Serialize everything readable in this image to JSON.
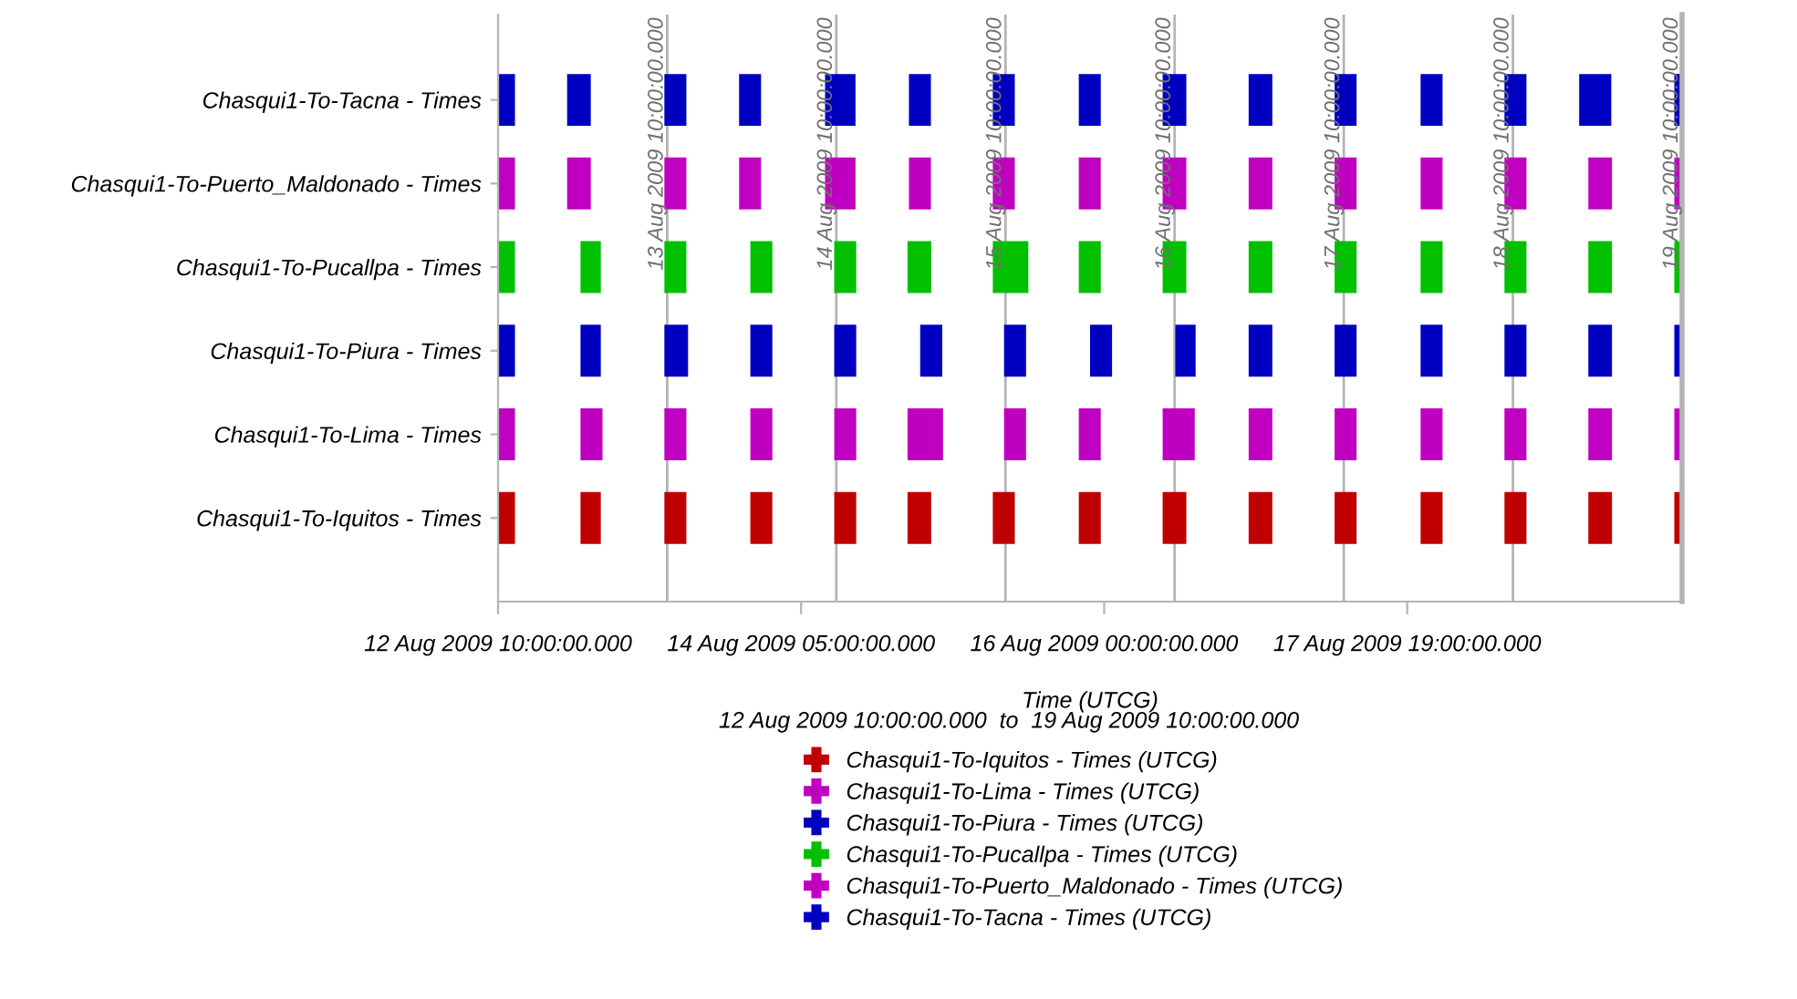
{
  "chart_data": {
    "type": "bar",
    "orientation": "horizontal",
    "xlabel": "Time (UTCG)",
    "annotations": [
      "12 Aug 2009 10:00:00.000  to  19 Aug 2009 10:00:00.000"
    ],
    "categories": [
      "Chasqui1-To-Tacna - Times",
      "Chasqui1-To-Puerto_Maldonado - Times",
      "Chasqui1-To-Pucallpa - Times",
      "Chasqui1-To-Piura - Times",
      "Chasqui1-To-Lima - Times",
      "Chasqui1-To-Iquitos - Times"
    ],
    "xlim": [
      "2009-08-12T10:00",
      "2009-08-19T10:00"
    ],
    "xticks": [
      {
        "value": "2009-08-12T10:00",
        "label": "12 Aug 2009 10:00:00.000"
      },
      {
        "value": "2009-08-14T05:00",
        "label": "14 Aug 2009 05:00:00.000"
      },
      {
        "value": "2009-08-16T00:00",
        "label": "16 Aug 2009 00:00:00.000"
      },
      {
        "value": "2009-08-17T19:00",
        "label": "17 Aug 2009 19:00:00.000"
      }
    ],
    "ref_lines": [
      {
        "axis": "x",
        "value": "2009-08-13T10:00",
        "label": "13 Aug 2009 10:00:00.000",
        "color": "#b4b4b4"
      },
      {
        "axis": "x",
        "value": "2009-08-14T10:00",
        "label": "14 Aug 2009 10:00:00.000",
        "color": "#b4b4b4"
      },
      {
        "axis": "x",
        "value": "2009-08-15T10:00",
        "label": "15 Aug 2009 10:00:00.000",
        "color": "#b4b4b4"
      },
      {
        "axis": "x",
        "value": "2009-08-16T10:00",
        "label": "16 Aug 2009 10:00:00.000",
        "color": "#b4b4b4"
      },
      {
        "axis": "x",
        "value": "2009-08-17T10:00",
        "label": "17 Aug 2009 10:00:00.000",
        "color": "#b4b4b4"
      },
      {
        "axis": "x",
        "value": "2009-08-18T10:00",
        "label": "18 Aug 2009 10:00:00.000",
        "color": "#b4b4b4"
      },
      {
        "axis": "x",
        "value": "2009-08-19T10:00",
        "label": "19 Aug 2009 10:00:00.000",
        "color": "#b4b4b4"
      }
    ],
    "legend": "bottom",
    "marker": "cross",
    "grid": false,
    "series": [
      {
        "name": "Chasqui1-To-Iquitos - Times (UTCG)",
        "color": "#c00000",
        "x": [
          "Chasqui1-To-Iquitos - Times",
          "Chasqui1-To-Iquitos - Times",
          "Chasqui1-To-Iquitos - Times",
          "Chasqui1-To-Iquitos - Times",
          "Chasqui1-To-Iquitos - Times",
          "Chasqui1-To-Iquitos - Times",
          "Chasqui1-To-Iquitos - Times",
          "Chasqui1-To-Iquitos - Times",
          "Chasqui1-To-Iquitos - Times",
          "Chasqui1-To-Iquitos - Times",
          "Chasqui1-To-Iquitos - Times",
          "Chasqui1-To-Iquitos - Times",
          "Chasqui1-To-Iquitos - Times",
          "Chasqui1-To-Iquitos - Times",
          "Chasqui1-To-Iquitos - Times"
        ],
        "base": [
          14468.4167,
          14468.9042,
          14469.4,
          14469.9083,
          14470.4042,
          14470.8375,
          14471.3417,
          14471.85,
          14472.3458,
          14472.8542,
          14473.3625,
          14473.8708,
          14474.3667,
          14474.8625,
          14475.3708
        ],
        "values": [
          0.1,
          0.12,
          0.13,
          0.13,
          0.13,
          0.14,
          0.13,
          0.13,
          0.14,
          0.14,
          0.13,
          0.13,
          0.13,
          0.14,
          0.04
        ]
      },
      {
        "name": "Chasqui1-To-Lima - Times (UTCG)",
        "color": "#c000c0",
        "x": [
          "Chasqui1-To-Lima - Times",
          "Chasqui1-To-Lima - Times",
          "Chasqui1-To-Lima - Times",
          "Chasqui1-To-Lima - Times",
          "Chasqui1-To-Lima - Times",
          "Chasqui1-To-Lima - Times",
          "Chasqui1-To-Lima - Times",
          "Chasqui1-To-Lima - Times",
          "Chasqui1-To-Lima - Times",
          "Chasqui1-To-Lima - Times",
          "Chasqui1-To-Lima - Times",
          "Chasqui1-To-Lima - Times",
          "Chasqui1-To-Lima - Times",
          "Chasqui1-To-Lima - Times",
          "Chasqui1-To-Lima - Times"
        ],
        "base": [
          14468.4167,
          14468.9042,
          14469.4,
          14469.9083,
          14470.4042,
          14470.8375,
          14471.4083,
          14471.85,
          14472.3458,
          14472.8542,
          14473.3625,
          14473.8708,
          14474.3667,
          14474.8625,
          14475.3708
        ],
        "values": [
          0.1,
          0.13,
          0.13,
          0.13,
          0.13,
          0.21,
          0.13,
          0.13,
          0.19,
          0.14,
          0.13,
          0.13,
          0.13,
          0.14,
          0.04
        ]
      },
      {
        "name": "Chasqui1-To-Piura - Times (UTCG)",
        "color": "#0000c0",
        "x": [
          "Chasqui1-To-Piura - Times",
          "Chasqui1-To-Piura - Times",
          "Chasqui1-To-Piura - Times",
          "Chasqui1-To-Piura - Times",
          "Chasqui1-To-Piura - Times",
          "Chasqui1-To-Piura - Times",
          "Chasqui1-To-Piura - Times",
          "Chasqui1-To-Piura - Times",
          "Chasqui1-To-Piura - Times",
          "Chasqui1-To-Piura - Times",
          "Chasqui1-To-Piura - Times",
          "Chasqui1-To-Piura - Times",
          "Chasqui1-To-Piura - Times",
          "Chasqui1-To-Piura - Times",
          "Chasqui1-To-Piura - Times"
        ],
        "base": [
          14468.4167,
          14468.9042,
          14469.4,
          14469.9083,
          14470.4042,
          14470.9125,
          14471.4083,
          14471.9167,
          14472.4208,
          14472.8542,
          14473.3625,
          14473.8708,
          14474.3667,
          14474.8625,
          14475.3708
        ],
        "values": [
          0.1,
          0.12,
          0.14,
          0.13,
          0.13,
          0.13,
          0.13,
          0.13,
          0.12,
          0.14,
          0.13,
          0.13,
          0.13,
          0.14,
          0.04
        ]
      },
      {
        "name": "Chasqui1-To-Pucallpa - Times (UTCG)",
        "color": "#00c000",
        "x": [
          "Chasqui1-To-Pucallpa - Times",
          "Chasqui1-To-Pucallpa - Times",
          "Chasqui1-To-Pucallpa - Times",
          "Chasqui1-To-Pucallpa - Times",
          "Chasqui1-To-Pucallpa - Times",
          "Chasqui1-To-Pucallpa - Times",
          "Chasqui1-To-Pucallpa - Times",
          "Chasqui1-To-Pucallpa - Times",
          "Chasqui1-To-Pucallpa - Times",
          "Chasqui1-To-Pucallpa - Times",
          "Chasqui1-To-Pucallpa - Times",
          "Chasqui1-To-Pucallpa - Times",
          "Chasqui1-To-Pucallpa - Times",
          "Chasqui1-To-Pucallpa - Times",
          "Chasqui1-To-Pucallpa - Times"
        ],
        "base": [
          14468.4167,
          14468.9042,
          14469.4,
          14469.9083,
          14470.4042,
          14470.8375,
          14471.3417,
          14471.85,
          14472.3458,
          14472.8542,
          14473.3625,
          14473.8708,
          14474.3667,
          14474.8625,
          14475.3708
        ],
        "values": [
          0.1,
          0.12,
          0.13,
          0.13,
          0.13,
          0.14,
          0.21,
          0.13,
          0.14,
          0.14,
          0.13,
          0.13,
          0.13,
          0.14,
          0.04
        ]
      },
      {
        "name": "Chasqui1-To-Puerto_Maldonado - Times (UTCG)",
        "color": "#c000c0",
        "x": [
          "Chasqui1-To-Puerto_Maldonado - Times",
          "Chasqui1-To-Puerto_Maldonado - Times",
          "Chasqui1-To-Puerto_Maldonado - Times",
          "Chasqui1-To-Puerto_Maldonado - Times",
          "Chasqui1-To-Puerto_Maldonado - Times",
          "Chasqui1-To-Puerto_Maldonado - Times",
          "Chasqui1-To-Puerto_Maldonado - Times",
          "Chasqui1-To-Puerto_Maldonado - Times",
          "Chasqui1-To-Puerto_Maldonado - Times",
          "Chasqui1-To-Puerto_Maldonado - Times",
          "Chasqui1-To-Puerto_Maldonado - Times",
          "Chasqui1-To-Puerto_Maldonado - Times",
          "Chasqui1-To-Puerto_Maldonado - Times",
          "Chasqui1-To-Puerto_Maldonado - Times",
          "Chasqui1-To-Puerto_Maldonado - Times"
        ],
        "base": [
          14468.4167,
          14468.825,
          14469.4,
          14469.8417,
          14470.35,
          14470.8458,
          14471.3417,
          14471.85,
          14472.3458,
          14472.8542,
          14473.3625,
          14473.8708,
          14474.3667,
          14474.8625,
          14475.3708
        ],
        "values": [
          0.1,
          0.14,
          0.13,
          0.13,
          0.18,
          0.13,
          0.13,
          0.13,
          0.14,
          0.14,
          0.13,
          0.13,
          0.13,
          0.14,
          0.04
        ]
      },
      {
        "name": "Chasqui1-To-Tacna - Times (UTCG)",
        "color": "#0000c0",
        "x": [
          "Chasqui1-To-Tacna - Times",
          "Chasqui1-To-Tacna - Times",
          "Chasqui1-To-Tacna - Times",
          "Chasqui1-To-Tacna - Times",
          "Chasqui1-To-Tacna - Times",
          "Chasqui1-To-Tacna - Times",
          "Chasqui1-To-Tacna - Times",
          "Chasqui1-To-Tacna - Times",
          "Chasqui1-To-Tacna - Times",
          "Chasqui1-To-Tacna - Times",
          "Chasqui1-To-Tacna - Times",
          "Chasqui1-To-Tacna - Times",
          "Chasqui1-To-Tacna - Times",
          "Chasqui1-To-Tacna - Times",
          "Chasqui1-To-Tacna - Times"
        ],
        "base": [
          14468.4167,
          14468.825,
          14469.4,
          14469.8417,
          14470.35,
          14470.8458,
          14471.3417,
          14471.85,
          14472.3458,
          14472.8542,
          14473.3625,
          14473.8708,
          14474.3667,
          14474.8083,
          14475.3708
        ],
        "values": [
          0.1,
          0.14,
          0.13,
          0.13,
          0.18,
          0.13,
          0.13,
          0.13,
          0.14,
          0.14,
          0.13,
          0.13,
          0.13,
          0.19,
          0.04
        ]
      }
    ]
  }
}
